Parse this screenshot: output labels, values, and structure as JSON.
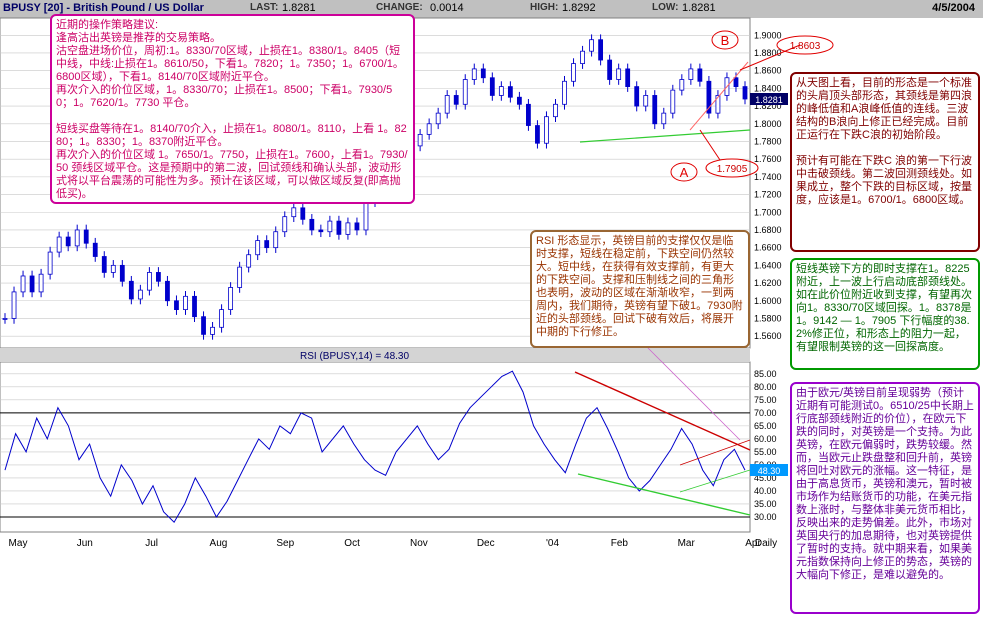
{
  "header": {
    "title": "BPUSY [20] - British Pound / US Dollar",
    "last_label": "LAST:",
    "last_value": "1.8281",
    "change_label": "CHANGE:",
    "change_value": "0.0014",
    "high_label": "HIGH:",
    "high_value": "1.8292",
    "low_label": "LOW:",
    "low_value": "1.8281",
    "date": "4/5/2004"
  },
  "chart_data": [
    {
      "type": "candlestick",
      "y_ticks": [
        "1.9000",
        "1.8800",
        "1.8600",
        "1.8400",
        "1.8200",
        "1.8000",
        "1.7800",
        "1.7600",
        "1.7400",
        "1.7200",
        "1.7000",
        "1.6800",
        "1.6600",
        "1.6400",
        "1.6200",
        "1.6000",
        "1.5800",
        "1.5600"
      ],
      "ylim": [
        1.55,
        1.915
      ],
      "last_price_label": "1.8281",
      "close_series": [
        1.58,
        1.61,
        1.628,
        1.61,
        1.63,
        1.655,
        1.672,
        1.662,
        1.68,
        1.665,
        1.65,
        1.632,
        1.64,
        1.622,
        1.602,
        1.612,
        1.632,
        1.622,
        1.6,
        1.59,
        1.605,
        1.582,
        1.562,
        1.57,
        1.59,
        1.615,
        1.638,
        1.652,
        1.668,
        1.66,
        1.678,
        1.695,
        1.705,
        1.692,
        1.68,
        1.678,
        1.69,
        1.675,
        1.688,
        1.68,
        1.712,
        1.738,
        1.732,
        1.742,
        1.762,
        1.775,
        1.788,
        1.8,
        1.812,
        1.832,
        1.822,
        1.85,
        1.862,
        1.852,
        1.832,
        1.842,
        1.83,
        1.822,
        1.798,
        1.778,
        1.808,
        1.822,
        1.848,
        1.868,
        1.882,
        1.895,
        1.872,
        1.85,
        1.862,
        1.842,
        1.82,
        1.832,
        1.8,
        1.812,
        1.838,
        1.85,
        1.862,
        1.848,
        1.812,
        1.832,
        1.852,
        1.842,
        1.828
      ],
      "annotations": [
        {
          "label": "B",
          "value": "1.8603"
        },
        {
          "label": "A",
          "value": "1.7905"
        }
      ]
    },
    {
      "type": "line",
      "title": "RSI (BPUSY,14) = 48.30",
      "y_ticks": [
        "85.00",
        "80.00",
        "75.00",
        "70.00",
        "65.00",
        "60.00",
        "55.00",
        "50.00",
        "45.00",
        "40.00",
        "35.00",
        "30.00"
      ],
      "ylim": [
        25,
        88
      ],
      "last_value_label": "48.30",
      "reference_lines": [
        70,
        30
      ],
      "values": [
        48,
        62,
        55,
        68,
        60,
        72,
        65,
        52,
        58,
        45,
        38,
        50,
        44,
        35,
        42,
        32,
        28,
        35,
        45,
        38,
        30,
        36,
        44,
        52,
        60,
        56,
        65,
        62,
        70,
        68,
        55,
        60,
        65,
        58,
        52,
        48,
        46,
        55,
        60,
        65,
        58,
        52,
        56,
        66,
        72,
        76,
        80,
        84,
        86,
        78,
        65,
        58,
        52,
        47,
        58,
        68,
        72,
        64,
        55,
        45,
        40,
        44,
        50,
        56,
        64,
        58,
        48,
        42,
        52,
        56,
        48
      ],
      "x_ticks": [
        "May",
        "Jun",
        "Jul",
        "Aug",
        "Sep",
        "Oct",
        "Nov",
        "Dec",
        "'04",
        "Feb",
        "Mar",
        "Apr",
        "Daily"
      ]
    }
  ],
  "notes": {
    "box1": "近期的操作策略建议:\n逢高沽出英镑是推荐的交易策略。\n沽空盘进场价位，周初:1。8330/70区域，止损在1。8380/1。8405（短中线，中线:止损在1。8610/50，下看1。7820；1。7350；1。6700/1。6800区域），下看1。8140/70区域附近平仓。\n再次介入的价位区域，1。8330/70；止损在1。8500；下看1。7930/50；1。7620/1。7730 平仓。\n\n短线买盘等待在1。8140/70介入，止损在1。8080/1。8110，上看 1。8280；1。8330；1。8370附近平仓。\n再次介入的价位区域 1。7650/1。7750，止损在1。7600，上看1。7930/50 颈线区域平仓。这是预期中的第二波，回试颈线和确认头部，波动形式将以平台震荡的可能性为多。预计在该区域，可以做区域反复(即高抛低买)。",
    "box2": "RSI 形态显示，英镑目前的支撑仅仅是临时支撑，短线在稳定前，下跌空间仍然较大。短中线，在获得有效支撑前，有更大的下跌空间。支撑和压制线之间的三角形也表明，波动的区域在渐渐收窄，一到两周内，我们期待，英镑有望下破1。7930附近的头部颈线。回试下破有效后，将展开中期的下行修正。",
    "box3": "从天图上看，目前的形态是一个标准的头肩顶头部形态，其颈线是第四浪的峰低值和A浪峰低值的连线。三波结构的B浪向上修正已经完成。目前正运行在下跌C浪的初始阶段。\n\n预计有可能在下跌C 浪的第一下行波中击破颈线。第二波回测颈线处。如果成立，整个下跌的目标区域，按量度，应该是1。6700/1。6800区域。",
    "box4": "短线英镑下方的即时支撑在1。8225附近，上一波上行启动底部颈线处。如在此价位附近收到支撑，有望再次向1。8330/70区域回探。1。8378是1。9142 — 1。7905 下行幅度的38.2%修正位，和形态上的阻力一起，有望限制英镑的这一回探高度。",
    "box5": "由于欧元/英镑目前呈现弱势（预计近期有可能测试0。6510/25中长期上行底部颈线附近的价位），在欧元下跌的同时，对英镑是一个支持。为此英镑，在欧元偏弱时，跌势较缓。然而，当欧元止跌盘整和回升前，英镑将回吐对欧元的涨幅。这一特征，是由于高息货币，英镑和澳元，暂时被市场作为结账货币的功能，在美元指数上涨时，与整体非美元货币相比，反映出来的走势偏差。此外，市场对英国央行的加息期待，也对英镑提供了暂时的支持。就中期来看，如果美元指数保持向上修正的势态，英镑的大幅向下修正，是难以避免的。"
  },
  "colors": {
    "price": "#0000cc",
    "grid": "#c8c8c8",
    "neckline": "#33cc33",
    "resistance": "#cc0000",
    "support": "#33cc33",
    "annotation": "#e00000"
  }
}
